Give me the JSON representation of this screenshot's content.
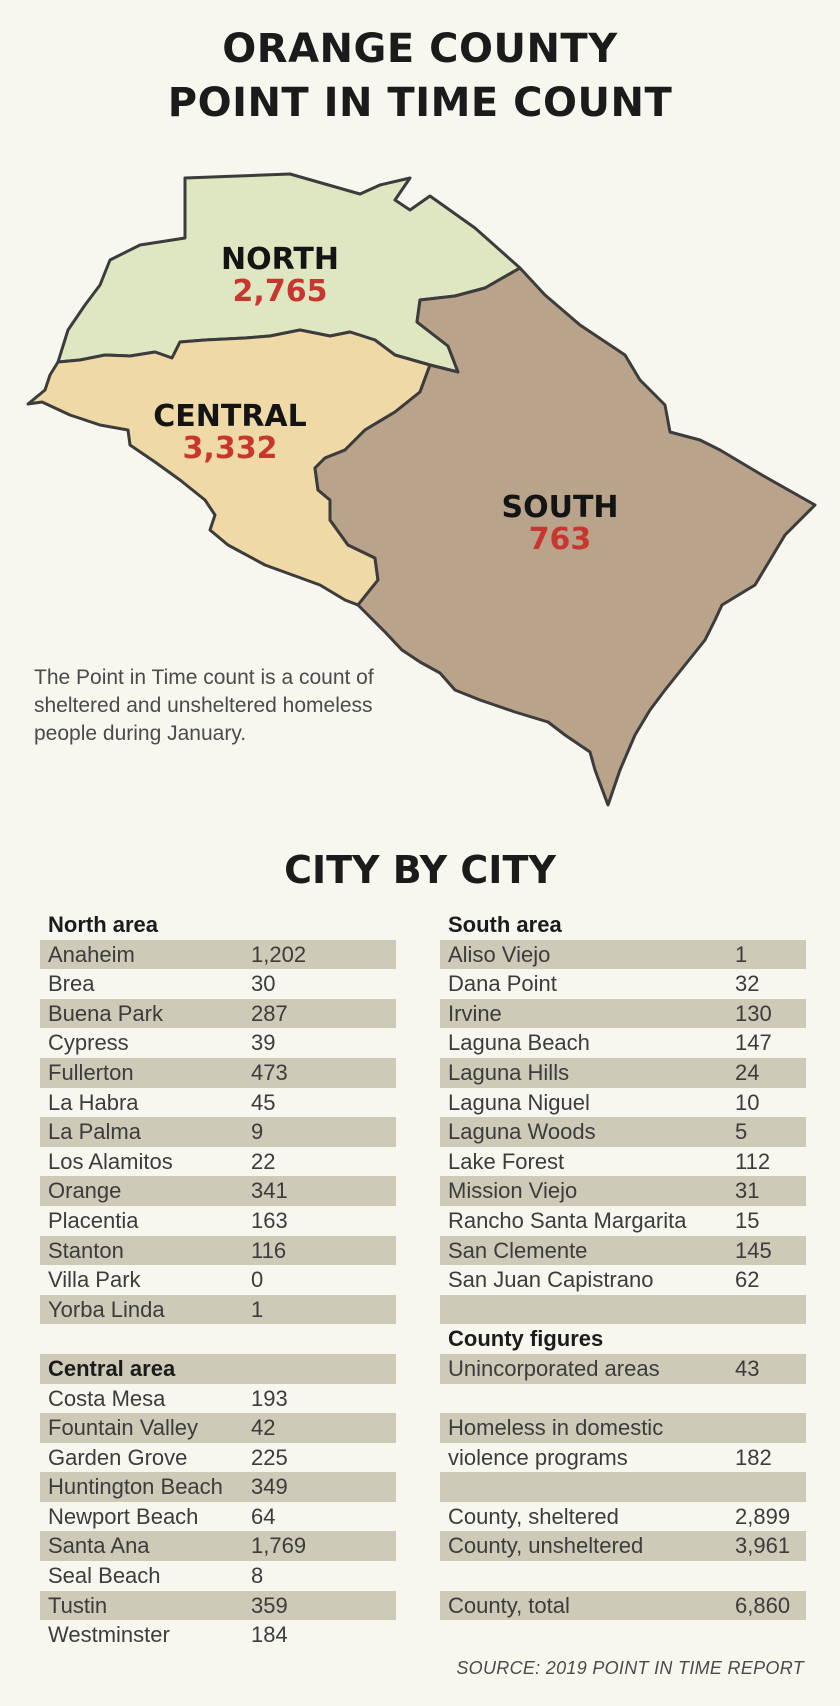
{
  "title_line1": "ORANGE COUNTY",
  "title_line2": "POINT IN TIME COUNT",
  "regions": {
    "north": {
      "name": "NORTH",
      "value": "2,765",
      "color": "#dfe6c2"
    },
    "central": {
      "name": "CENTRAL",
      "value": "3,332",
      "color": "#efd9a6"
    },
    "south": {
      "name": "SOUTH",
      "value": "763",
      "color": "#b9a38b"
    }
  },
  "note": "The Point in Time count is a count of sheltered and unsheltered homeless people during January.",
  "section_title": "CITY BY CITY",
  "north_area": {
    "heading": "North area",
    "rows": [
      {
        "name": "Anaheim",
        "value": "1,202"
      },
      {
        "name": "Brea",
        "value": "30"
      },
      {
        "name": "Buena Park",
        "value": "287"
      },
      {
        "name": "Cypress",
        "value": "39"
      },
      {
        "name": "Fullerton",
        "value": "473"
      },
      {
        "name": "La Habra",
        "value": "45"
      },
      {
        "name": "La Palma",
        "value": "9"
      },
      {
        "name": "Los Alamitos",
        "value": "22"
      },
      {
        "name": "Orange",
        "value": "341"
      },
      {
        "name": "Placentia",
        "value": "163"
      },
      {
        "name": "Stanton",
        "value": "116"
      },
      {
        "name": "Villa Park",
        "value": "0"
      },
      {
        "name": "Yorba Linda",
        "value": "1"
      }
    ]
  },
  "central_area": {
    "heading": "Central area",
    "rows": [
      {
        "name": "Costa Mesa",
        "value": "193"
      },
      {
        "name": "Fountain Valley",
        "value": "42"
      },
      {
        "name": "Garden Grove",
        "value": "225"
      },
      {
        "name": "Huntington Beach",
        "value": "349"
      },
      {
        "name": "Newport Beach",
        "value": "64"
      },
      {
        "name": "Santa Ana",
        "value": "1,769"
      },
      {
        "name": "Seal Beach",
        "value": "8"
      },
      {
        "name": "Tustin",
        "value": "359"
      },
      {
        "name": "Westminster",
        "value": "184"
      }
    ]
  },
  "south_area": {
    "heading": "South area",
    "rows": [
      {
        "name": "Aliso Viejo",
        "value": "1"
      },
      {
        "name": "Dana Point",
        "value": "32"
      },
      {
        "name": "Irvine",
        "value": "130"
      },
      {
        "name": "Laguna Beach",
        "value": "147"
      },
      {
        "name": "Laguna Hills",
        "value": "24"
      },
      {
        "name": "Laguna Niguel",
        "value": "10"
      },
      {
        "name": "Laguna Woods",
        "value": "5"
      },
      {
        "name": "Lake Forest",
        "value": "112"
      },
      {
        "name": "Mission Viejo",
        "value": "31"
      },
      {
        "name": "Rancho Santa Margarita",
        "value": "15"
      },
      {
        "name": "San Clemente",
        "value": "145"
      },
      {
        "name": "San Juan Capistrano",
        "value": "62"
      }
    ]
  },
  "county_figures": {
    "heading": "County figures",
    "unincorporated_label": "Unincorporated areas",
    "unincorporated_value": "43",
    "dv_label_line1": "Homeless in domestic",
    "dv_label_line2": "violence programs",
    "dv_value": "182",
    "sheltered_label": "County, sheltered",
    "sheltered_value": "2,899",
    "unsheltered_label": "County, unsheltered",
    "unsheltered_value": "3,961",
    "total_label": "County, total",
    "total_value": "6,860"
  },
  "source": "SOURCE: 2019 POINT IN TIME REPORT",
  "colors": {
    "row_shade": "#cdcab8",
    "value_red": "#c8372f",
    "background": "#f8f7ef",
    "outline": "#3c3c3c"
  }
}
